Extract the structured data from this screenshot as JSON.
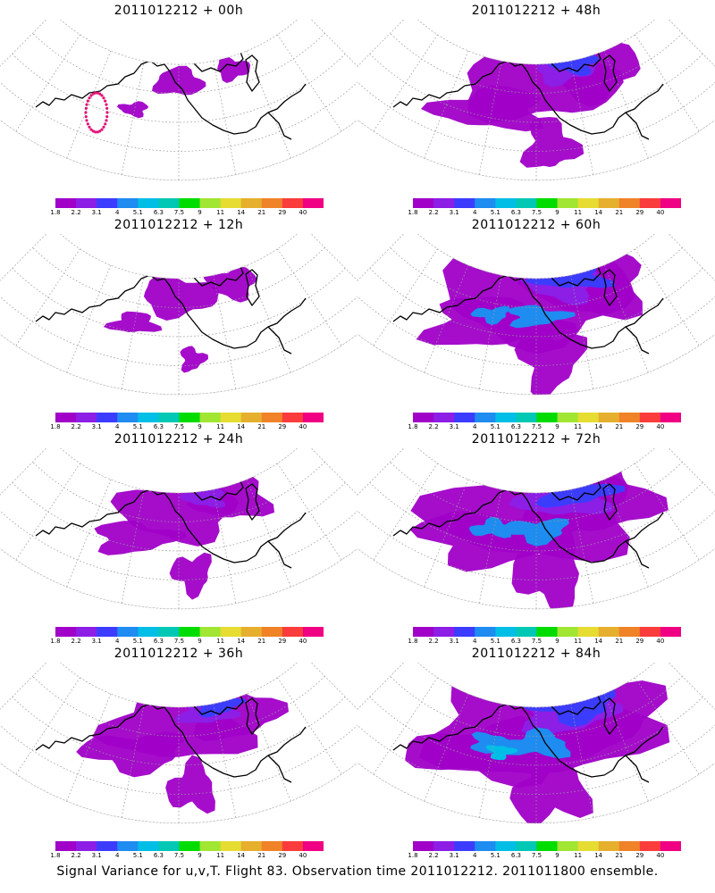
{
  "panels": [
    {
      "title": "2011012212 + 00h",
      "coverage": 0.06
    },
    {
      "title": "2011012212 + 48h",
      "coverage": 0.55
    },
    {
      "title": "2011012212 + 12h",
      "coverage": 0.18
    },
    {
      "title": "2011012212 + 60h",
      "coverage": 0.7
    },
    {
      "title": "2011012212 + 24h",
      "coverage": 0.38
    },
    {
      "title": "2011012212 + 72h",
      "coverage": 0.78
    },
    {
      "title": "2011012212 + 36h",
      "coverage": 0.5
    },
    {
      "title": "2011012212 + 84h",
      "coverage": 0.85
    }
  ],
  "colorbar": {
    "colors": [
      "#a000c8",
      "#8c1ee6",
      "#3c3cff",
      "#1e8cf0",
      "#00bee6",
      "#00c8b4",
      "#00dc00",
      "#a0e632",
      "#e6dc32",
      "#e6af2d",
      "#f08228",
      "#fa3c3c",
      "#f00082"
    ],
    "labels": [
      "1.8",
      "2.2",
      "3.1",
      "4",
      "5.1",
      "6.3",
      "7.5",
      "9",
      "11",
      "14",
      "21",
      "29",
      "40"
    ]
  },
  "caption": "Signal Variance for u,v,T. Flight 83. Observation time 2011012212. 2011011800 ensemble."
}
